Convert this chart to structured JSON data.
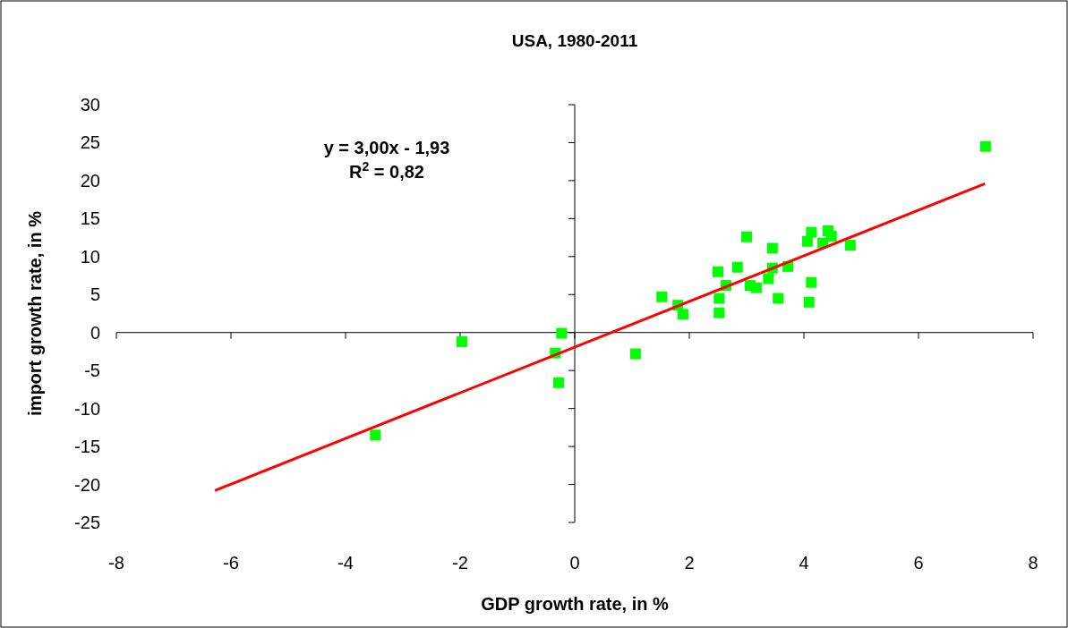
{
  "chart_data": {
    "type": "scatter",
    "title": "USA, 1980-2011",
    "xlabel": "GDP growth rate, in %",
    "ylabel": "import growth rate, in %",
    "annotations": [
      "y = 3,00x - 1,93",
      "R$^{2}$ = 0,82"
    ],
    "xlim": [
      -8,
      8
    ],
    "xticks": [
      -8,
      -6,
      -4,
      -2,
      0,
      2,
      4,
      6,
      8
    ],
    "ylim": [
      -25,
      30
    ],
    "yticks": [
      -25,
      -20,
      -15,
      -10,
      -5,
      0,
      5,
      10,
      15,
      20,
      25,
      30
    ],
    "series": [
      {
        "color": "#00ff00",
        "marker": "square",
        "x": [
          7.17,
          -3.48,
          -1.97,
          -0.23,
          -0.34,
          -0.28,
          1.06,
          1.52,
          1.8,
          1.89,
          2.5,
          2.52,
          2.52,
          2.64,
          2.84,
          3.0,
          3.06,
          3.17,
          3.38,
          3.45,
          3.45,
          3.55,
          3.72,
          4.06,
          4.13,
          4.13,
          4.09,
          4.33,
          4.42,
          4.48,
          4.81
        ],
        "values": [
          24.5,
          -13.5,
          -1.2,
          -0.1,
          -2.7,
          -6.6,
          -2.8,
          4.7,
          3.6,
          2.4,
          8.0,
          4.5,
          2.6,
          6.2,
          8.6,
          12.6,
          6.2,
          5.9,
          7.1,
          11.1,
          8.5,
          4.5,
          8.7,
          12.0,
          13.2,
          6.6,
          4.0,
          11.8,
          13.4,
          12.7,
          11.5
        ]
      },
      {
        "type": "line",
        "color": "#ff0000",
        "marker": "none",
        "line_style": "solid",
        "x": [
          -6.28,
          7.16
        ],
        "values": [
          -20.8,
          19.6
        ]
      }
    ]
  }
}
